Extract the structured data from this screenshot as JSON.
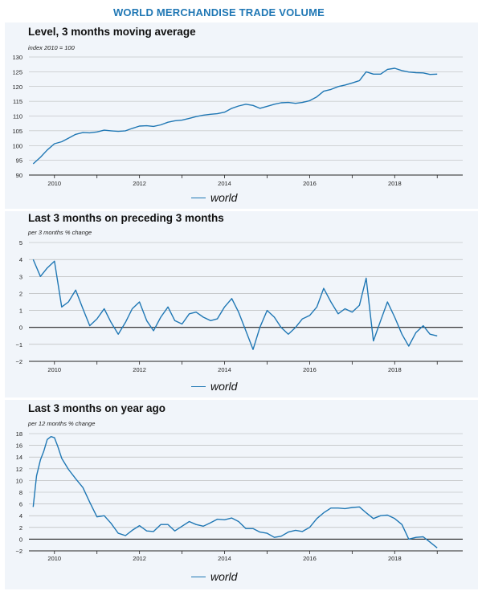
{
  "page_title": "WORLD MERCHANDISE TRADE VOLUME",
  "colors": {
    "title": "#1f77b4",
    "line": "#1f77b4",
    "panel_bg": "#f1f5fa",
    "grid": "#b0b0b0"
  },
  "chart_data": [
    {
      "type": "line",
      "title": "Level, 3 months moving average",
      "subtitle": "index 2010 = 100",
      "xlim": [
        2009.4,
        2019.6
      ],
      "ylim": [
        90,
        130
      ],
      "yticks": [
        90,
        95,
        100,
        105,
        110,
        115,
        120,
        125,
        130
      ],
      "ytick_labels": [
        "90",
        "95",
        "100",
        "105",
        "110",
        "115",
        "120",
        "125",
        "130"
      ],
      "xticks": [
        2010,
        2012,
        2014,
        2016,
        2018
      ],
      "xtick_labels": [
        "2010",
        "2012",
        "2014",
        "2016",
        "2018"
      ],
      "grid": true,
      "legend": "bottom-center",
      "series": [
        {
          "name": "world",
          "x": [
            2009.5,
            2009.67,
            2009.83,
            2010.0,
            2010.17,
            2010.33,
            2010.5,
            2010.67,
            2010.83,
            2011.0,
            2011.17,
            2011.33,
            2011.5,
            2011.67,
            2011.83,
            2012.0,
            2012.17,
            2012.33,
            2012.5,
            2012.67,
            2012.83,
            2013.0,
            2013.17,
            2013.33,
            2013.5,
            2013.67,
            2013.83,
            2014.0,
            2014.17,
            2014.33,
            2014.5,
            2014.67,
            2014.83,
            2015.0,
            2015.17,
            2015.33,
            2015.5,
            2015.67,
            2015.83,
            2016.0,
            2016.17,
            2016.33,
            2016.5,
            2016.67,
            2016.83,
            2017.0,
            2017.17,
            2017.33,
            2017.5,
            2017.67,
            2017.83,
            2018.0,
            2018.17,
            2018.33,
            2018.5,
            2018.67,
            2018.83,
            2019.0
          ],
          "y": [
            93.8,
            96.0,
            98.5,
            100.6,
            101.3,
            102.5,
            103.8,
            104.4,
            104.3,
            104.6,
            105.2,
            105.0,
            104.8,
            105.0,
            105.8,
            106.6,
            106.7,
            106.5,
            107.0,
            107.9,
            108.4,
            108.6,
            109.2,
            109.8,
            110.3,
            110.6,
            110.8,
            111.3,
            112.6,
            113.4,
            114.0,
            113.6,
            112.6,
            113.3,
            114.0,
            114.5,
            114.6,
            114.3,
            114.6,
            115.2,
            116.5,
            118.4,
            119.0,
            120.0,
            120.5,
            121.2,
            122.0,
            125.0,
            124.2,
            124.2,
            125.8,
            126.2,
            125.4,
            124.9,
            124.7,
            124.6,
            124.1,
            124.2
          ]
        }
      ]
    },
    {
      "type": "line",
      "title": "Last 3 months on preceding 3 months",
      "subtitle": "per 3 months % change",
      "xlim": [
        2009.4,
        2019.6
      ],
      "ylim": [
        -2,
        5
      ],
      "yticks": [
        -2,
        -1,
        0,
        1,
        2,
        3,
        4,
        5
      ],
      "ytick_labels": [
        "−2",
        "−1",
        "0",
        "1",
        "2",
        "3",
        "4",
        "5"
      ],
      "xticks": [
        2010,
        2012,
        2014,
        2016,
        2018
      ],
      "xtick_labels": [
        "2010",
        "2012",
        "2014",
        "2016",
        "2018"
      ],
      "grid": true,
      "legend": "bottom-center",
      "series": [
        {
          "name": "world",
          "x": [
            2009.5,
            2009.67,
            2009.83,
            2010.0,
            2010.17,
            2010.33,
            2010.5,
            2010.67,
            2010.83,
            2011.0,
            2011.17,
            2011.33,
            2011.5,
            2011.67,
            2011.83,
            2012.0,
            2012.17,
            2012.33,
            2012.5,
            2012.67,
            2012.83,
            2013.0,
            2013.17,
            2013.33,
            2013.5,
            2013.67,
            2013.83,
            2014.0,
            2014.17,
            2014.33,
            2014.5,
            2014.67,
            2014.83,
            2015.0,
            2015.17,
            2015.33,
            2015.5,
            2015.67,
            2015.83,
            2016.0,
            2016.17,
            2016.33,
            2016.5,
            2016.67,
            2016.83,
            2017.0,
            2017.17,
            2017.33,
            2017.5,
            2017.67,
            2017.83,
            2018.0,
            2018.17,
            2018.33,
            2018.5,
            2018.67,
            2018.83,
            2019.0
          ],
          "y": [
            4.0,
            3.0,
            3.5,
            3.9,
            1.2,
            1.5,
            2.2,
            1.1,
            0.1,
            0.5,
            1.1,
            0.3,
            -0.4,
            0.3,
            1.1,
            1.5,
            0.4,
            -0.2,
            0.6,
            1.2,
            0.4,
            0.2,
            0.8,
            0.9,
            0.6,
            0.4,
            0.5,
            1.2,
            1.7,
            0.9,
            -0.2,
            -1.3,
            0.0,
            1.0,
            0.6,
            0.0,
            -0.4,
            0.0,
            0.5,
            0.7,
            1.2,
            2.3,
            1.5,
            0.8,
            1.1,
            0.9,
            1.3,
            2.9,
            -0.8,
            0.4,
            1.5,
            0.6,
            -0.4,
            -1.1,
            -0.3,
            0.1,
            -0.4,
            -0.5
          ]
        }
      ]
    },
    {
      "type": "line",
      "title": "Last 3 months on year ago",
      "subtitle": "per 12 months % change",
      "xlim": [
        2009.4,
        2019.6
      ],
      "ylim": [
        -2,
        18
      ],
      "yticks": [
        -2,
        0,
        2,
        4,
        6,
        8,
        10,
        12,
        14,
        16,
        18
      ],
      "ytick_labels": [
        "−2",
        "0",
        "2",
        "4",
        "6",
        "8",
        "10",
        "12",
        "14",
        "16",
        "18"
      ],
      "xticks": [
        2010,
        2012,
        2014,
        2016,
        2018
      ],
      "xtick_labels": [
        "2010",
        "2012",
        "2014",
        "2016",
        "2018"
      ],
      "grid": true,
      "legend": "bottom-center",
      "series": [
        {
          "name": "world",
          "x": [
            2009.5,
            2009.58,
            2009.67,
            2009.75,
            2009.83,
            2009.92,
            2010.0,
            2010.08,
            2010.17,
            2010.33,
            2010.5,
            2010.67,
            2010.83,
            2011.0,
            2011.17,
            2011.33,
            2011.5,
            2011.67,
            2011.83,
            2012.0,
            2012.17,
            2012.33,
            2012.5,
            2012.67,
            2012.83,
            2013.0,
            2013.17,
            2013.33,
            2013.5,
            2013.67,
            2013.83,
            2014.0,
            2014.17,
            2014.33,
            2014.5,
            2014.67,
            2014.83,
            2015.0,
            2015.17,
            2015.33,
            2015.5,
            2015.67,
            2015.83,
            2016.0,
            2016.17,
            2016.33,
            2016.5,
            2016.67,
            2016.83,
            2017.0,
            2017.17,
            2017.33,
            2017.5,
            2017.67,
            2017.83,
            2018.0,
            2018.17,
            2018.33,
            2018.5,
            2018.67,
            2018.83,
            2019.0
          ],
          "y": [
            5.5,
            10.8,
            13.5,
            15.0,
            17.0,
            17.5,
            17.3,
            15.8,
            13.8,
            11.9,
            10.3,
            8.8,
            6.3,
            3.8,
            4.0,
            2.7,
            1.0,
            0.6,
            1.5,
            2.3,
            1.4,
            1.3,
            2.5,
            2.5,
            1.4,
            2.2,
            3.0,
            2.5,
            2.2,
            2.8,
            3.4,
            3.3,
            3.6,
            3.0,
            1.8,
            1.8,
            1.2,
            1.0,
            0.3,
            0.5,
            1.2,
            1.5,
            1.3,
            2.0,
            3.5,
            4.5,
            5.3,
            5.3,
            5.2,
            5.4,
            5.5,
            4.5,
            3.5,
            4.0,
            4.1,
            3.5,
            2.5,
            0.0,
            0.3,
            0.4,
            -0.5,
            -1.5
          ]
        }
      ]
    }
  ]
}
